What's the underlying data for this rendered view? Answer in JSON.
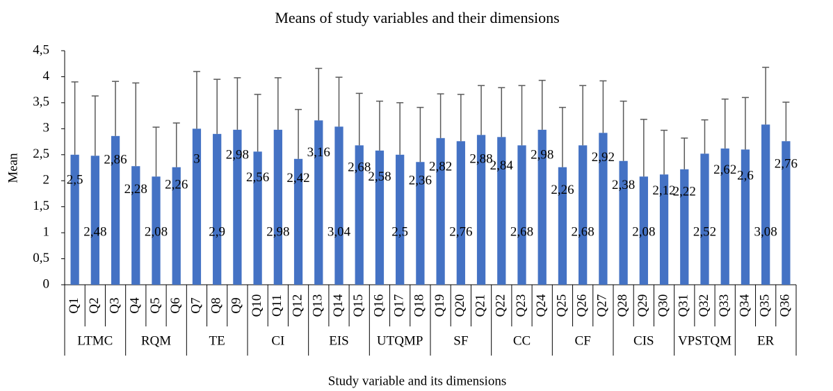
{
  "chart_data": {
    "type": "bar",
    "title": "Means of study variables and their dimensions",
    "x_label": "Study variable and its dimensions",
    "y_label": "Mean",
    "categories": [
      "Q1",
      "Q2",
      "Q3",
      "Q4",
      "Q5",
      "Q6",
      "Q7",
      "Q8",
      "Q9",
      "Q10",
      "Q11",
      "Q12",
      "Q13",
      "Q14",
      "Q15",
      "Q16",
      "Q17",
      "Q18",
      "Q19",
      "Q20",
      "Q21",
      "Q22",
      "Q23",
      "Q24",
      "Q25",
      "Q26",
      "Q27",
      "Q28",
      "Q29",
      "Q30",
      "Q31",
      "Q32",
      "Q33",
      "Q34",
      "Q35",
      "Q36"
    ],
    "groups": [
      "LTMC",
      "RQM",
      "TE",
      "CI",
      "EIS",
      "UTQMP",
      "SF",
      "CC",
      "CF",
      "CIS",
      "VPSTQM",
      "ER"
    ],
    "series": [
      {
        "color": "#4472c4",
        "values": [
          2.5,
          2.48,
          2.86,
          2.28,
          2.08,
          2.26,
          3,
          2.9,
          2.98,
          2.56,
          2.98,
          2.42,
          3.16,
          3.04,
          2.68,
          2.58,
          2.5,
          2.36,
          2.82,
          2.76,
          2.88,
          2.84,
          2.68,
          2.98,
          2.26,
          2.68,
          2.92,
          2.38,
          2.08,
          2.12,
          2.22,
          2.52,
          2.62,
          2.6,
          3.08,
          2.76
        ],
        "value_labels": [
          "2,5",
          "2,48",
          "2,86",
          "2,28",
          "2,08",
          "2,26",
          "3",
          "2,9",
          "2,98",
          "2,56",
          "2,98",
          "2,42",
          "3,16",
          "3,04",
          "2,68",
          "2,58",
          "2,5",
          "2,36",
          "2,82",
          "2,76",
          "2,88",
          "2,84",
          "2,68",
          "2,98",
          "2,26",
          "2,68",
          "2,92",
          "2,38",
          "2,08",
          "2,12",
          "2,22",
          "2,52",
          "2,62",
          "2,6",
          "3,08",
          "2,76"
        ],
        "errors": [
          1.4,
          1.15,
          1.05,
          1.6,
          0.95,
          0.85,
          1.1,
          1.05,
          1.0,
          1.1,
          1.0,
          0.95,
          1.0,
          0.95,
          1.0,
          0.95,
          1.0,
          1.05,
          0.85,
          0.9,
          0.95,
          0.95,
          1.15,
          0.95,
          1.15,
          1.15,
          1.0,
          1.15,
          1.1,
          0.85,
          0.6,
          0.65,
          0.95,
          1.0,
          1.1,
          0.75
        ],
        "error_color": "#595959"
      }
    ],
    "ylim": [
      0,
      4.5
    ],
    "yticks": [
      0,
      {
        "value": 0.5,
        "label": "0,5"
      },
      1,
      {
        "value": 1.5,
        "label": "1,5"
      },
      2,
      {
        "value": 2.5,
        "label": "2,5"
      },
      3,
      {
        "value": 3.5,
        "label": "3,5"
      },
      4,
      {
        "value": 4.5,
        "label": "4,5"
      }
    ],
    "grid": false
  }
}
